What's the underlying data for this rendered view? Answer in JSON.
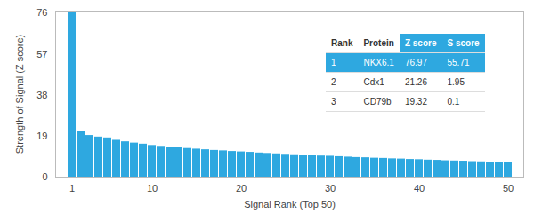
{
  "chart_data": {
    "type": "bar",
    "x_label": "Signal Rank (Top 50)",
    "y_label": "Strength of Signal (Z score)",
    "categories": [
      1,
      2,
      3,
      4,
      5,
      6,
      7,
      8,
      9,
      10,
      11,
      12,
      13,
      14,
      15,
      16,
      17,
      18,
      19,
      20,
      21,
      22,
      23,
      24,
      25,
      26,
      27,
      28,
      29,
      30,
      31,
      32,
      33,
      34,
      35,
      36,
      37,
      38,
      39,
      40,
      41,
      42,
      43,
      44,
      45,
      46,
      47,
      48,
      49,
      50
    ],
    "values": [
      76.97,
      21.26,
      19.32,
      18.6,
      18.2,
      17.1,
      16.4,
      15.8,
      15.3,
      14.7,
      14.3,
      13.9,
      13.6,
      13.3,
      13.0,
      12.7,
      12.4,
      12.2,
      11.9,
      11.7,
      11.5,
      11.2,
      11.0,
      10.8,
      10.6,
      10.4,
      10.2,
      10.0,
      9.8,
      9.7,
      9.5,
      9.3,
      9.1,
      9.0,
      8.8,
      8.7,
      8.5,
      8.4,
      8.2,
      8.1,
      7.9,
      7.8,
      7.6,
      7.5,
      7.4,
      7.2,
      7.1,
      7.0,
      6.9,
      6.8
    ],
    "color": "#2ea8e0",
    "ylim": [
      0,
      77
    ],
    "yticks": [
      0,
      19,
      38,
      57,
      76
    ],
    "xticks": [
      1,
      10,
      20,
      30,
      40,
      50
    ],
    "grid": false
  },
  "table": {
    "columns": [
      "Rank",
      "Protein",
      "Z score",
      "S score"
    ],
    "highlight_columns": [
      "Z score",
      "S score"
    ],
    "highlight_row": 1,
    "rows": [
      [
        1,
        "NKX6.1",
        76.97,
        55.71
      ],
      [
        2,
        "Cdx1",
        21.26,
        1.95
      ],
      [
        3,
        "CD79b",
        19.32,
        0.1
      ]
    ]
  }
}
